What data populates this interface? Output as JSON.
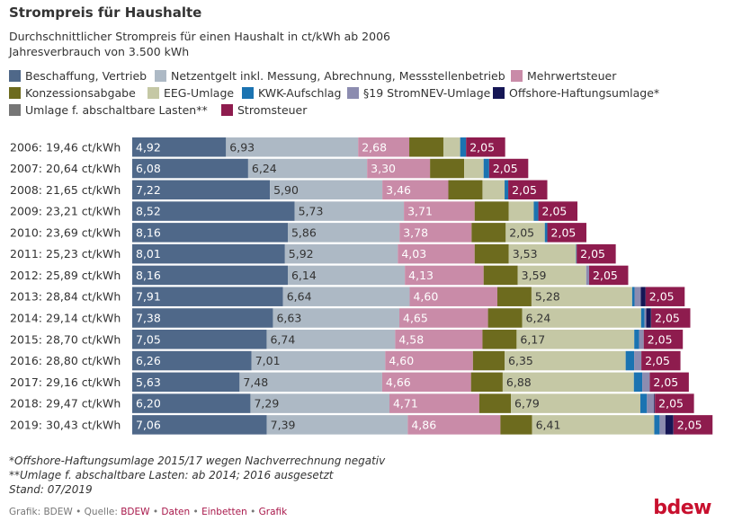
{
  "header": {
    "title": "Strompreis für Haushalte",
    "subtitle_line1": "Durchschnittlicher Strompreis für einen Haushalt in ct/kWh ab 2006",
    "subtitle_line2": "Jahresverbrauch von 3.500 kWh"
  },
  "colors": [
    "#4f6889",
    "#adb9c5",
    "#c98ba8",
    "#6d6b1e",
    "#c5c8a5",
    "#1b73b1",
    "#8c8cb0",
    "#151655",
    "#767676",
    "#8e1c4e"
  ],
  "legend": [
    {
      "label": "Beschaffung, Vertrieb"
    },
    {
      "label": "Netzentgelt inkl. Messung, Abrechnung, Messstellenbetrieb"
    },
    {
      "label": "Mehrwertsteuer"
    },
    {
      "label": "Konzessionsabgabe"
    },
    {
      "label": "EEG-Umlage"
    },
    {
      "label": "KWK-Aufschlag"
    },
    {
      "label": "§19 StromNEV-Umlage"
    },
    {
      "label": "Offshore-Haftungsumlage*"
    },
    {
      "label": "Umlage f. abschaltbare Lasten**"
    },
    {
      "label": "Stromsteuer"
    }
  ],
  "chart_data": {
    "type": "bar",
    "orientation": "horizontal",
    "stacked": true,
    "title": "Strompreis für Haushalte",
    "unit": "ct/kWh",
    "categories": [
      "2006: 19,46 ct/kWh",
      "2007: 20,64 ct/kWh",
      "2008: 21,65 ct/kWh",
      "2009: 23,21 ct/kWh",
      "2010: 23,69 ct/kWh",
      "2011: 25,23 ct/kWh",
      "2012: 25,89 ct/kWh",
      "2013: 28,84 ct/kWh",
      "2014: 29,14 ct/kWh",
      "2015: 28,70 ct/kWh",
      "2016: 28,80 ct/kWh",
      "2017: 29,16 ct/kWh",
      "2018: 29,47 ct/kWh",
      "2019: 30,43 ct/kWh"
    ],
    "series": [
      {
        "name": "Beschaffung, Vertrieb",
        "values": [
          4.92,
          6.08,
          7.22,
          8.52,
          8.16,
          8.01,
          8.16,
          7.91,
          7.38,
          7.05,
          6.26,
          5.63,
          6.2,
          7.06
        ],
        "labels": [
          "4,92",
          "6,08",
          "7,22",
          "8,52",
          "8,16",
          "8,01",
          "8,16",
          "7,91",
          "7,38",
          "7,05",
          "6,26",
          "5,63",
          "6,20",
          "7,06"
        ]
      },
      {
        "name": "Netzentgelt inkl. Messung, Abrechnung, Messstellenbetrieb",
        "values": [
          6.93,
          6.24,
          5.9,
          5.73,
          5.86,
          5.92,
          6.14,
          6.64,
          6.63,
          6.74,
          7.01,
          7.48,
          7.29,
          7.39
        ],
        "labels": [
          "6,93",
          "6,24",
          "5,90",
          "5,73",
          "5,86",
          "5,92",
          "6,14",
          "6,64",
          "6,63",
          "6,74",
          "7,01",
          "7,48",
          "7,29",
          "7,39"
        ]
      },
      {
        "name": "Mehrwertsteuer",
        "values": [
          2.68,
          3.3,
          3.46,
          3.71,
          3.78,
          4.03,
          4.13,
          4.6,
          4.65,
          4.58,
          4.6,
          4.66,
          4.71,
          4.86
        ],
        "labels": [
          "2,68",
          "3,30",
          "3,46",
          "3,71",
          "3,78",
          "4,03",
          "4,13",
          "4,60",
          "4,65",
          "4,58",
          "4,60",
          "4,66",
          "4,71",
          "4,86"
        ]
      },
      {
        "name": "Konzessionsabgabe",
        "values": [
          1.79,
          1.79,
          1.79,
          1.79,
          1.79,
          1.79,
          1.79,
          1.79,
          1.79,
          1.79,
          1.66,
          1.66,
          1.66,
          1.66
        ],
        "labels": [
          "",
          "",
          "",
          "",
          "",
          "",
          "",
          "",
          "",
          "",
          "",
          "",
          "",
          ""
        ]
      },
      {
        "name": "EEG-Umlage",
        "values": [
          0.88,
          1.02,
          1.16,
          1.31,
          2.05,
          3.53,
          3.59,
          5.28,
          6.24,
          6.17,
          6.35,
          6.88,
          6.79,
          6.41
        ],
        "labels": [
          "",
          "",
          "",
          "",
          "2,05",
          "3,53",
          "3,59",
          "5,28",
          "6,24",
          "6,17",
          "6,35",
          "6,88",
          "6,79",
          "6,41"
        ]
      },
      {
        "name": "KWK-Aufschlag",
        "values": [
          0.31,
          0.29,
          0.19,
          0.24,
          0.13,
          0.03,
          0.002,
          0.126,
          0.178,
          0.254,
          0.445,
          0.438,
          0.345,
          0.28
        ],
        "labels": [
          "",
          "",
          "",
          "",
          "",
          "",
          "",
          "",
          "",
          "",
          "",
          "",
          "",
          ""
        ]
      },
      {
        "name": "§19 StromNEV-Umlage",
        "values": [
          0,
          0,
          0,
          0,
          0,
          0,
          0.151,
          0.329,
          0.092,
          0.237,
          0.378,
          0.388,
          0.37,
          0.305
        ],
        "labels": [
          "",
          "",
          "",
          "",
          "",
          "",
          "",
          "",
          "",
          "",
          "",
          "",
          "",
          ""
        ]
      },
      {
        "name": "Offshore-Haftungsumlage*",
        "values": [
          0,
          0,
          0,
          0,
          0,
          0,
          0,
          0.25,
          0.25,
          0,
          0,
          0,
          0.037,
          0.416
        ],
        "labels": [
          "",
          "",
          "",
          "",
          "",
          "",
          "",
          "",
          "",
          "",
          "",
          "",
          "",
          ""
        ]
      },
      {
        "name": "Umlage f. abschaltbare Lasten**",
        "values": [
          0,
          0,
          0,
          0,
          0,
          0,
          0,
          0,
          0.009,
          0.006,
          0,
          0.006,
          0.011,
          0.005
        ],
        "labels": [
          "",
          "",
          "",
          "",
          "",
          "",
          "",
          "",
          "",
          "",
          "",
          "",
          "",
          ""
        ]
      },
      {
        "name": "Stromsteuer",
        "values": [
          2.05,
          2.05,
          2.05,
          2.05,
          2.05,
          2.05,
          2.05,
          2.05,
          2.05,
          2.05,
          2.05,
          2.05,
          2.05,
          2.05
        ],
        "labels": [
          "2,05",
          "2,05",
          "2,05",
          "2,05",
          "2,05",
          "2,05",
          "2,05",
          "2,05",
          "2,05",
          "2,05",
          "2,05",
          "2,05",
          "2,05",
          "2,05"
        ]
      }
    ]
  },
  "footnotes": {
    "note1": "*Offshore-Haftungsumlage 2015/17 wegen Nachverrechnung negativ",
    "note2": "**Umlage f. abschaltbare Lasten: ab 2014; 2016 ausgesetzt",
    "note3": "Stand: 07/2019"
  },
  "credits": {
    "grafik_label": "Grafik: BDEW",
    "separator": "•",
    "quelle_label": "Quelle:",
    "quelle_link": "BDEW",
    "daten_link": "Daten",
    "einbetten_link": "Einbetten",
    "grafik_link": "Grafik"
  },
  "logo": {
    "text": "bdew"
  }
}
